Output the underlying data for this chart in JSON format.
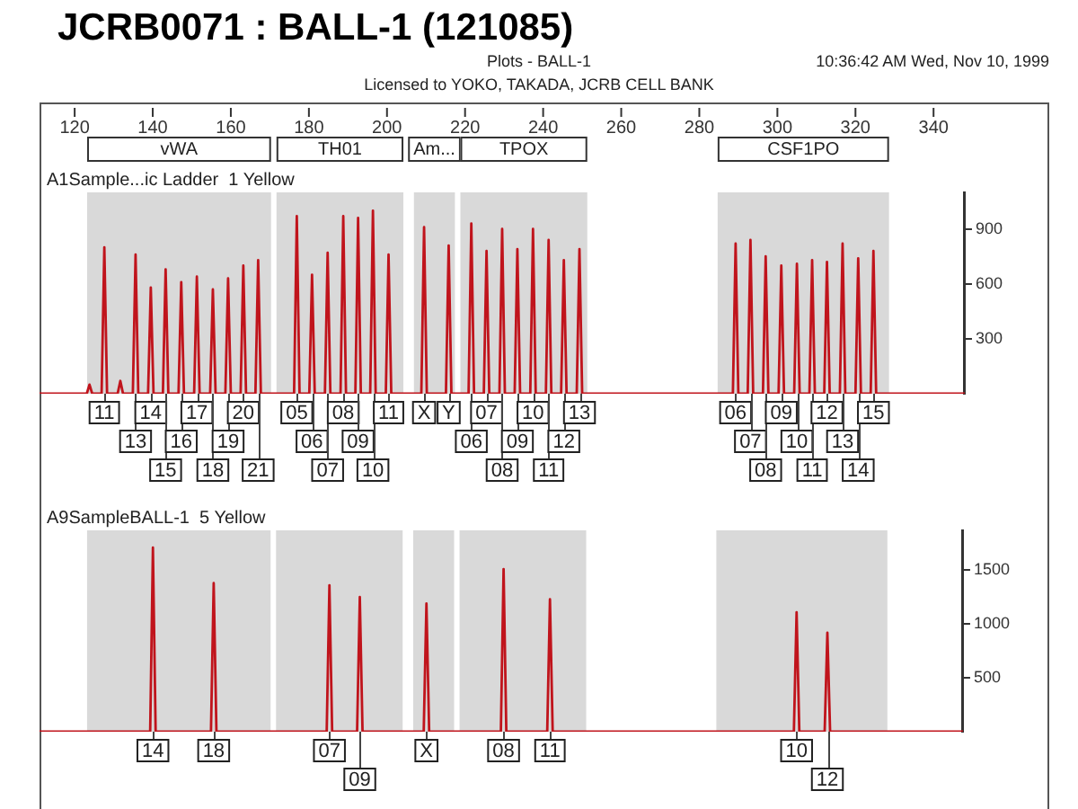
{
  "chart_data": [
    {
      "type": "line",
      "title": "JCRB0071 : BALL-1 (121085)",
      "subtitle": "Plots - BALL-1",
      "annotations": [
        "10:36:42 AM Wed, Nov 10, 1999",
        "Licensed to YOKO, TAKADA, JCRB CELL BANK",
        "A1Sample...ic Ladder  1 Yellow",
        {
          "text": "11",
          "x": 127.6,
          "y": 0
        },
        {
          "text": "13",
          "x": 135.6,
          "y": 0
        },
        {
          "text": "14",
          "x": 139.5,
          "y": 0
        },
        {
          "text": "15",
          "x": 143.3,
          "y": 0
        },
        {
          "text": "16",
          "x": 147.3,
          "y": 0
        },
        {
          "text": "17",
          "x": 151.3,
          "y": 0
        },
        {
          "text": "18",
          "x": 155.4,
          "y": 0
        },
        {
          "text": "19",
          "x": 159.3,
          "y": 0
        },
        {
          "text": "20",
          "x": 163.2,
          "y": 0
        },
        {
          "text": "21",
          "x": 167.0,
          "y": 0
        },
        {
          "text": "05",
          "x": 176.9,
          "y": 0
        },
        {
          "text": "06",
          "x": 180.8,
          "y": 0
        },
        {
          "text": "07",
          "x": 184.8,
          "y": 0
        },
        {
          "text": "08",
          "x": 188.8,
          "y": 0
        },
        {
          "text": "09",
          "x": 192.6,
          "y": 0
        },
        {
          "text": "10",
          "x": 196.4,
          "y": 0
        },
        {
          "text": "11",
          "x": 200.4,
          "y": 0
        },
        {
          "text": "X",
          "x": 209.5,
          "y": 0
        },
        {
          "text": "Y",
          "x": 215.8,
          "y": 0
        },
        {
          "text": "06",
          "x": 221.6,
          "y": 0
        },
        {
          "text": "07",
          "x": 225.5,
          "y": 0
        },
        {
          "text": "08",
          "x": 229.5,
          "y": 0
        },
        {
          "text": "09",
          "x": 233.4,
          "y": 0
        },
        {
          "text": "10",
          "x": 237.4,
          "y": 0
        },
        {
          "text": "11",
          "x": 241.4,
          "y": 0
        },
        {
          "text": "12",
          "x": 245.3,
          "y": 0
        },
        {
          "text": "13",
          "x": 249.3,
          "y": 0
        },
        {
          "text": "06",
          "x": 289.3,
          "y": 0
        },
        {
          "text": "07",
          "x": 293.1,
          "y": 0
        },
        {
          "text": "08",
          "x": 297.0,
          "y": 0
        },
        {
          "text": "09",
          "x": 301.0,
          "y": 0
        },
        {
          "text": "10",
          "x": 305.0,
          "y": 0
        },
        {
          "text": "11",
          "x": 308.9,
          "y": 0
        },
        {
          "text": "12",
          "x": 312.7,
          "y": 0
        },
        {
          "text": "13",
          "x": 316.7,
          "y": 0
        },
        {
          "text": "14",
          "x": 320.7,
          "y": 0
        },
        {
          "text": "15",
          "x": 324.6,
          "y": 0
        }
      ],
      "bands": [
        {
          "axis": "x",
          "from": 123.2,
          "to": 170.3,
          "label": "vWA",
          "color": "#d9d9d9"
        },
        {
          "axis": "x",
          "from": 171.7,
          "to": 204.2,
          "label": "TH01",
          "color": "#d9d9d9"
        },
        {
          "axis": "x",
          "from": 206.9,
          "to": 217.4,
          "label": "Am...",
          "color": "#d9d9d9"
        },
        {
          "axis": "x",
          "from": 218.8,
          "to": 251.3,
          "label": "TPOX",
          "color": "#d9d9d9"
        },
        {
          "axis": "x",
          "from": 284.7,
          "to": 328.6,
          "label": "CSF1PO",
          "color": "#d9d9d9"
        }
      ],
      "series": [
        {
          "color": "#c0141c",
          "x": [
            111,
            123.1,
            123.8,
            124.5,
            126.9,
            127.6,
            128.3,
            131.0,
            131.7,
            132.4,
            134.9,
            135.6,
            136.3,
            138.8,
            139.5,
            140.2,
            142.6,
            143.3,
            144.0,
            146.6,
            147.3,
            148.0,
            150.6,
            151.3,
            152.0,
            154.7,
            155.4,
            156.1,
            158.6,
            159.3,
            160.0,
            162.5,
            163.2,
            163.9,
            166.3,
            167.0,
            167.7,
            176.2,
            176.9,
            177.6,
            180.1,
            180.8,
            181.5,
            184.1,
            184.8,
            185.5,
            188.1,
            188.8,
            189.5,
            191.9,
            192.6,
            193.3,
            195.7,
            196.4,
            197.1,
            199.7,
            200.4,
            201.1,
            208.8,
            209.5,
            210.2,
            215.1,
            215.8,
            216.5,
            220.9,
            221.6,
            222.3,
            224.8,
            225.5,
            226.2,
            228.8,
            229.5,
            230.2,
            232.7,
            233.4,
            234.1,
            236.7,
            237.4,
            238.1,
            240.7,
            241.4,
            242.1,
            244.6,
            245.3,
            246.0,
            248.6,
            249.3,
            250.0,
            288.6,
            289.3,
            290.0,
            292.4,
            293.1,
            293.8,
            296.3,
            297.0,
            297.7,
            300.3,
            301.0,
            301.7,
            304.3,
            305.0,
            305.7,
            308.2,
            308.9,
            309.6,
            312.0,
            312.7,
            313.4,
            316.0,
            316.7,
            317.4,
            320.0,
            320.7,
            321.4,
            323.9,
            324.6,
            325.3,
            348
          ],
          "values": [
            0,
            0,
            50,
            0,
            0,
            800,
            0,
            0,
            70,
            0,
            0,
            760,
            0,
            0,
            580,
            0,
            0,
            680,
            0,
            0,
            610,
            0,
            0,
            640,
            0,
            0,
            570,
            0,
            0,
            630,
            0,
            0,
            700,
            0,
            0,
            730,
            0,
            0,
            970,
            0,
            0,
            650,
            0,
            0,
            770,
            0,
            0,
            970,
            0,
            0,
            960,
            0,
            0,
            1000,
            0,
            0,
            760,
            0,
            0,
            910,
            0,
            0,
            810,
            0,
            0,
            930,
            0,
            0,
            780,
            0,
            0,
            900,
            0,
            0,
            790,
            0,
            0,
            900,
            0,
            0,
            840,
            0,
            0,
            730,
            0,
            0,
            790,
            0,
            0,
            820,
            0,
            0,
            840,
            0,
            0,
            750,
            0,
            0,
            700,
            0,
            0,
            710,
            0,
            0,
            730,
            0,
            0,
            720,
            0,
            0,
            820,
            0,
            0,
            740,
            0,
            0,
            780,
            0,
            0
          ]
        }
      ],
      "xlim": [
        111,
        348
      ],
      "xticks": [
        120,
        140,
        160,
        180,
        200,
        220,
        240,
        260,
        280,
        300,
        320,
        340
      ],
      "ylim": [
        0,
        1100
      ],
      "yticks": [
        300,
        600,
        900
      ],
      "grid": false,
      "legend": false,
      "marker": "none",
      "line_style": "solid"
    },
    {
      "type": "line",
      "title": "A9SampleBALL-1  5 Yellow",
      "annotations": [
        {
          "text": "14",
          "x": 140.1,
          "y": 0
        },
        {
          "text": "18",
          "x": 155.7,
          "y": 0
        },
        {
          "text": "07",
          "x": 185.4,
          "y": 0
        },
        {
          "text": "09",
          "x": 193.2,
          "y": 0
        },
        {
          "text": "X",
          "x": 210.3,
          "y": 0
        },
        {
          "text": "08",
          "x": 230.1,
          "y": 0
        },
        {
          "text": "11",
          "x": 242.0,
          "y": 0
        },
        {
          "text": "10",
          "x": 305.3,
          "y": 0
        },
        {
          "text": "12",
          "x": 313.2,
          "y": 0
        }
      ],
      "bands": [
        {
          "axis": "x",
          "from": 123.2,
          "to": 170.3,
          "color": "#d9d9d9"
        },
        {
          "axis": "x",
          "from": 171.7,
          "to": 204.2,
          "color": "#d9d9d9"
        },
        {
          "axis": "x",
          "from": 206.9,
          "to": 217.4,
          "color": "#d9d9d9"
        },
        {
          "axis": "x",
          "from": 218.8,
          "to": 251.3,
          "color": "#d9d9d9"
        },
        {
          "axis": "x",
          "from": 284.7,
          "to": 328.6,
          "color": "#d9d9d9"
        }
      ],
      "series": [
        {
          "color": "#c0141c",
          "x": [
            111,
            139.4,
            140.1,
            140.8,
            155.0,
            155.7,
            156.4,
            184.7,
            185.4,
            186.1,
            192.5,
            193.2,
            193.9,
            209.6,
            210.3,
            211.0,
            229.4,
            230.1,
            230.8,
            241.3,
            242.0,
            242.7,
            304.6,
            305.3,
            306.0,
            312.5,
            313.2,
            313.9,
            348
          ],
          "values": [
            0,
            0,
            1710,
            0,
            0,
            1380,
            0,
            0,
            1360,
            0,
            0,
            1250,
            0,
            0,
            1190,
            0,
            0,
            1510,
            0,
            0,
            1230,
            0,
            0,
            1110,
            0,
            0,
            920,
            0,
            0
          ]
        }
      ],
      "xlim": [
        111,
        348
      ],
      "ylim": [
        0,
        1870
      ],
      "yticks": [
        500,
        1000,
        1500
      ],
      "tick_labels": "y",
      "grid": false,
      "legend": false,
      "marker": "none",
      "line_style": "solid"
    }
  ]
}
